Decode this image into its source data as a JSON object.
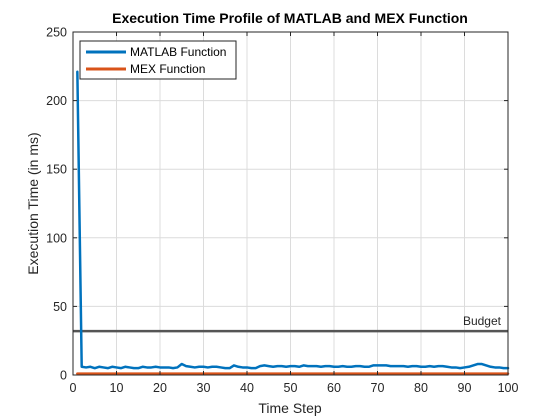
{
  "chart_data": {
    "type": "line",
    "title": "Execution Time Profile of MATLAB and MEX Function",
    "xlabel": "Time Step",
    "ylabel": "Execution Time (in ms)",
    "xlim": [
      0,
      100
    ],
    "ylim": [
      0,
      250
    ],
    "xticks": [
      0,
      10,
      20,
      30,
      40,
      50,
      60,
      70,
      80,
      90,
      100
    ],
    "yticks": [
      0,
      50,
      100,
      150,
      200,
      250
    ],
    "grid": true,
    "legend_position": "top-left",
    "series": [
      {
        "name": "MATLAB Function",
        "color": "#0072bd",
        "x": [
          1,
          2,
          3,
          4,
          5,
          6,
          7,
          8,
          9,
          10,
          11,
          12,
          13,
          14,
          15,
          16,
          17,
          18,
          19,
          20,
          21,
          22,
          23,
          24,
          25,
          26,
          27,
          28,
          29,
          30,
          31,
          32,
          33,
          34,
          35,
          36,
          37,
          38,
          39,
          40,
          41,
          42,
          43,
          44,
          45,
          46,
          47,
          48,
          49,
          50,
          51,
          52,
          53,
          54,
          55,
          56,
          57,
          58,
          59,
          60,
          61,
          62,
          63,
          64,
          65,
          66,
          67,
          68,
          69,
          70,
          71,
          72,
          73,
          74,
          75,
          76,
          77,
          78,
          79,
          80,
          81,
          82,
          83,
          84,
          85,
          86,
          87,
          88,
          89,
          90,
          91,
          92,
          93,
          94,
          95,
          96,
          97,
          98,
          99,
          100
        ],
        "y": [
          221,
          6,
          5.5,
          6,
          5,
          6,
          5.5,
          5,
          6,
          5.5,
          5,
          6,
          5.5,
          5,
          5,
          6,
          5.5,
          5.5,
          6,
          5.5,
          5.5,
          5.5,
          5,
          5.5,
          8,
          6.5,
          6,
          5.5,
          6,
          6,
          5.5,
          6,
          6,
          5.5,
          5,
          5,
          7,
          6,
          5.5,
          5.5,
          5,
          5,
          6.5,
          7,
          6.5,
          6,
          6.5,
          6.5,
          6,
          6.5,
          6.5,
          6,
          7,
          6.5,
          6.5,
          6.5,
          6,
          6.5,
          6.5,
          6,
          6,
          6.5,
          6,
          6,
          6.5,
          6.5,
          6,
          6,
          7,
          7,
          7,
          7,
          6.5,
          6.5,
          6.5,
          6.5,
          6,
          6.5,
          6.5,
          6,
          6,
          6.5,
          6,
          6.5,
          6.5,
          6,
          5.5,
          5.5,
          5,
          5.5,
          6,
          7,
          8,
          8,
          7,
          6,
          5.5,
          5.5,
          5,
          5
        ]
      },
      {
        "name": "MEX Function",
        "color": "#d95319",
        "x": [
          1,
          100
        ],
        "y": [
          1,
          1
        ]
      }
    ],
    "reference_line": {
      "label": "Budget",
      "y": 32,
      "color": "#555555"
    }
  }
}
